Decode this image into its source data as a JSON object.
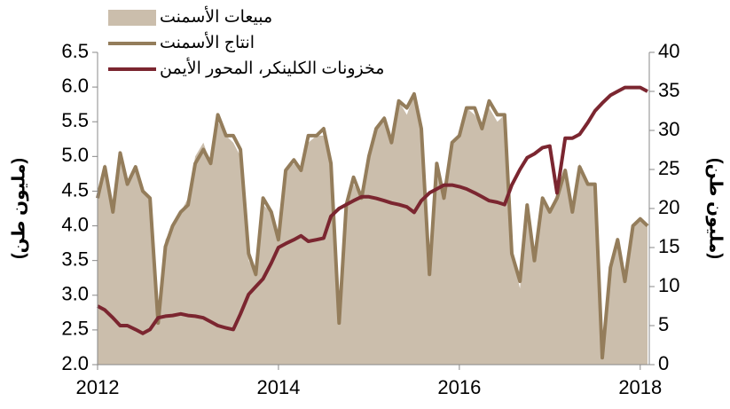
{
  "chart_data": {
    "type": "line",
    "y_label": "(مليون طن)",
    "y2_label": "(مليون طن)",
    "x": [
      2012,
      2012.08,
      2012.17,
      2012.25,
      2012.33,
      2012.42,
      2012.5,
      2012.58,
      2012.67,
      2012.75,
      2012.83,
      2012.92,
      2013,
      2013.08,
      2013.17,
      2013.25,
      2013.33,
      2013.42,
      2013.5,
      2013.58,
      2013.67,
      2013.75,
      2013.83,
      2013.92,
      2014,
      2014.08,
      2014.17,
      2014.25,
      2014.33,
      2014.42,
      2014.5,
      2014.58,
      2014.67,
      2014.75,
      2014.83,
      2014.92,
      2015,
      2015.08,
      2015.17,
      2015.25,
      2015.33,
      2015.42,
      2015.5,
      2015.58,
      2015.67,
      2015.75,
      2015.83,
      2015.92,
      2016,
      2016.08,
      2016.17,
      2016.25,
      2016.33,
      2016.42,
      2016.5,
      2016.58,
      2016.67,
      2016.75,
      2016.83,
      2016.92,
      2017,
      2017.08,
      2017.17,
      2017.25,
      2017.33,
      2017.42,
      2017.5,
      2017.58,
      2017.67,
      2017.75,
      2017.83,
      2017.92,
      2018,
      2018.08
    ],
    "series": [
      {
        "name": "مبيعات الأسمنت",
        "kind": "area",
        "color": "#cbbeac",
        "axis": "y",
        "values": [
          4.4,
          4.9,
          4.2,
          5.0,
          4.6,
          4.8,
          4.5,
          4.4,
          2.7,
          3.8,
          4.0,
          4.2,
          4.4,
          5.0,
          5.2,
          4.9,
          5.5,
          5.3,
          5.2,
          5.0,
          3.5,
          3.3,
          4.3,
          4.2,
          3.9,
          4.8,
          4.9,
          4.8,
          5.2,
          5.3,
          5.3,
          4.9,
          2.7,
          4.3,
          4.6,
          4.4,
          5.0,
          5.4,
          5.5,
          5.2,
          5.8,
          5.6,
          5.9,
          5.4,
          3.4,
          4.8,
          4.4,
          5.2,
          5.3,
          5.7,
          5.6,
          5.4,
          5.7,
          5.5,
          5.6,
          3.6,
          3.1,
          4.3,
          3.5,
          4.4,
          4.2,
          4.4,
          4.8,
          4.2,
          4.9,
          4.6,
          4.6,
          2.2,
          3.4,
          3.8,
          3.2,
          4.0,
          4.1,
          4.0
        ]
      },
      {
        "name": "انتاج الأسمنت",
        "kind": "line",
        "color": "#947d5b",
        "axis": "y",
        "values": [
          4.4,
          4.85,
          4.2,
          5.05,
          4.6,
          4.85,
          4.5,
          4.4,
          2.6,
          3.7,
          4.0,
          4.2,
          4.3,
          4.9,
          5.1,
          4.9,
          5.6,
          5.3,
          5.3,
          5.1,
          3.6,
          3.3,
          4.4,
          4.2,
          3.8,
          4.8,
          4.95,
          4.8,
          5.3,
          5.3,
          5.4,
          4.9,
          2.6,
          4.3,
          4.7,
          4.4,
          5.0,
          5.4,
          5.55,
          5.2,
          5.8,
          5.7,
          5.9,
          5.4,
          3.3,
          4.9,
          4.4,
          5.2,
          5.3,
          5.7,
          5.7,
          5.4,
          5.8,
          5.6,
          5.6,
          3.6,
          3.2,
          4.3,
          3.5,
          4.4,
          4.2,
          4.4,
          4.8,
          4.2,
          4.85,
          4.6,
          4.6,
          2.1,
          3.4,
          3.8,
          3.2,
          4.0,
          4.1,
          4.0
        ]
      },
      {
        "name": "مخزونات الكلينكر، المحور الأيمن",
        "kind": "line",
        "color": "#7b2630",
        "axis": "y2",
        "values": [
          7.5,
          7,
          6,
          5,
          5,
          4.5,
          4,
          4.5,
          6,
          6.2,
          6.3,
          6.5,
          6.3,
          6.2,
          6,
          5.5,
          5,
          4.7,
          4.5,
          6.5,
          9,
          10,
          11,
          13,
          15,
          15.5,
          16,
          16.5,
          15.8,
          16,
          16.2,
          19,
          20,
          20.5,
          21,
          21.5,
          21.5,
          21.3,
          21,
          20.7,
          20.5,
          20.2,
          19.5,
          21,
          22,
          22.5,
          23,
          23,
          22.8,
          22.5,
          22,
          21.5,
          21,
          20.8,
          20.5,
          23,
          25,
          26.5,
          27,
          27.8,
          28,
          22,
          29,
          29,
          29.5,
          31,
          32.5,
          33.5,
          34.5,
          35,
          35.5,
          35.5,
          35.5,
          35
        ]
      }
    ],
    "xlim": [
      2012,
      2018.1
    ],
    "xticks": [
      2012,
      2014,
      2016,
      2018
    ],
    "ylim": [
      2,
      6.5
    ],
    "yticks": [
      {
        "value": 2,
        "label": "2.0"
      },
      {
        "value": 2.5,
        "label": "2.5"
      },
      {
        "value": 3,
        "label": "3.0"
      },
      {
        "value": 3.5,
        "label": "3.5"
      },
      {
        "value": 4,
        "label": "4.0"
      },
      {
        "value": 4.5,
        "label": "4.5"
      },
      {
        "value": 5,
        "label": "5.0"
      },
      {
        "value": 5.5,
        "label": "5.5"
      },
      {
        "value": 6,
        "label": "6.0"
      },
      {
        "value": 6.5,
        "label": "6.5"
      }
    ],
    "y2lim": [
      0,
      40
    ],
    "y2ticks": [
      0,
      5,
      10,
      15,
      20,
      25,
      30,
      35,
      40
    ],
    "legend": "top-left"
  }
}
